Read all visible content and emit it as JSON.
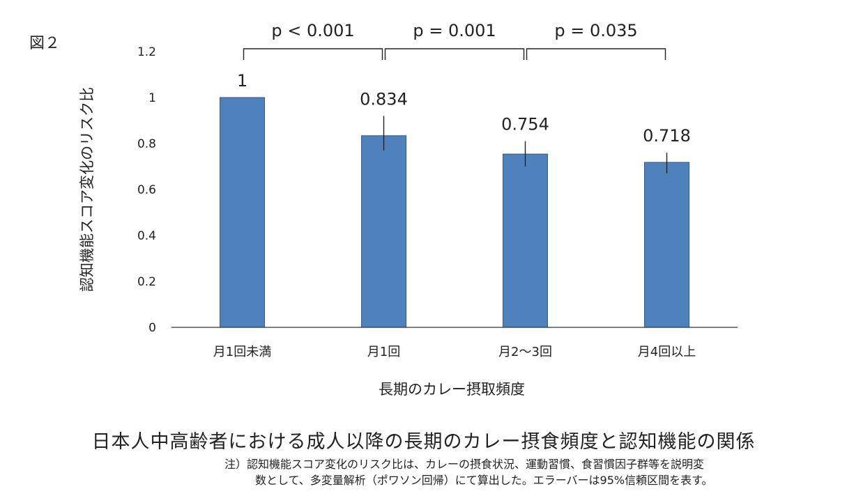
{
  "figure_label": "図２",
  "caption": "日本人中高齢者における成人以降の長期のカレー摂食頻度と認知機能の関係",
  "note": {
    "line1": "注）認知機能スコア変化のリスク比は、カレーの摂食状況、運動習慣、食習慣因子群等を説明変",
    "line2": "数として、多変量解析（ポワソン回帰）にて算出した。エラーバーは95%信頼区間を表す。"
  },
  "chart_data": {
    "type": "bar",
    "title": "",
    "xlabel": "長期のカレー摂取頻度",
    "ylabel": "認知機能スコア変化のリスク比",
    "ylim": [
      0,
      1.2
    ],
    "yticks": [
      0,
      0.2,
      0.4,
      0.6,
      0.8,
      1,
      1.2
    ],
    "ytick_labels": [
      "0",
      "0.2",
      "0.4",
      "0.6",
      "0.8",
      "1",
      "1.2"
    ],
    "categories": [
      "月1回未満",
      "月1回",
      "月2〜3回",
      "月4回以上"
    ],
    "values": [
      1,
      0.834,
      0.754,
      0.718
    ],
    "data_labels": [
      "1",
      "0.834",
      "0.754",
      "0.718"
    ],
    "error_bars": [
      null,
      [
        0.77,
        0.92
      ],
      [
        0.7,
        0.81
      ],
      [
        0.67,
        0.76
      ]
    ],
    "bar_color": "#4f81bd",
    "grid": false,
    "legend": "none",
    "significance": [
      {
        "from": 0,
        "to": 1,
        "label": "p < 0.001"
      },
      {
        "from": 1,
        "to": 2,
        "label": "p = 0.001"
      },
      {
        "from": 2,
        "to": 3,
        "label": "p = 0.035"
      }
    ]
  }
}
